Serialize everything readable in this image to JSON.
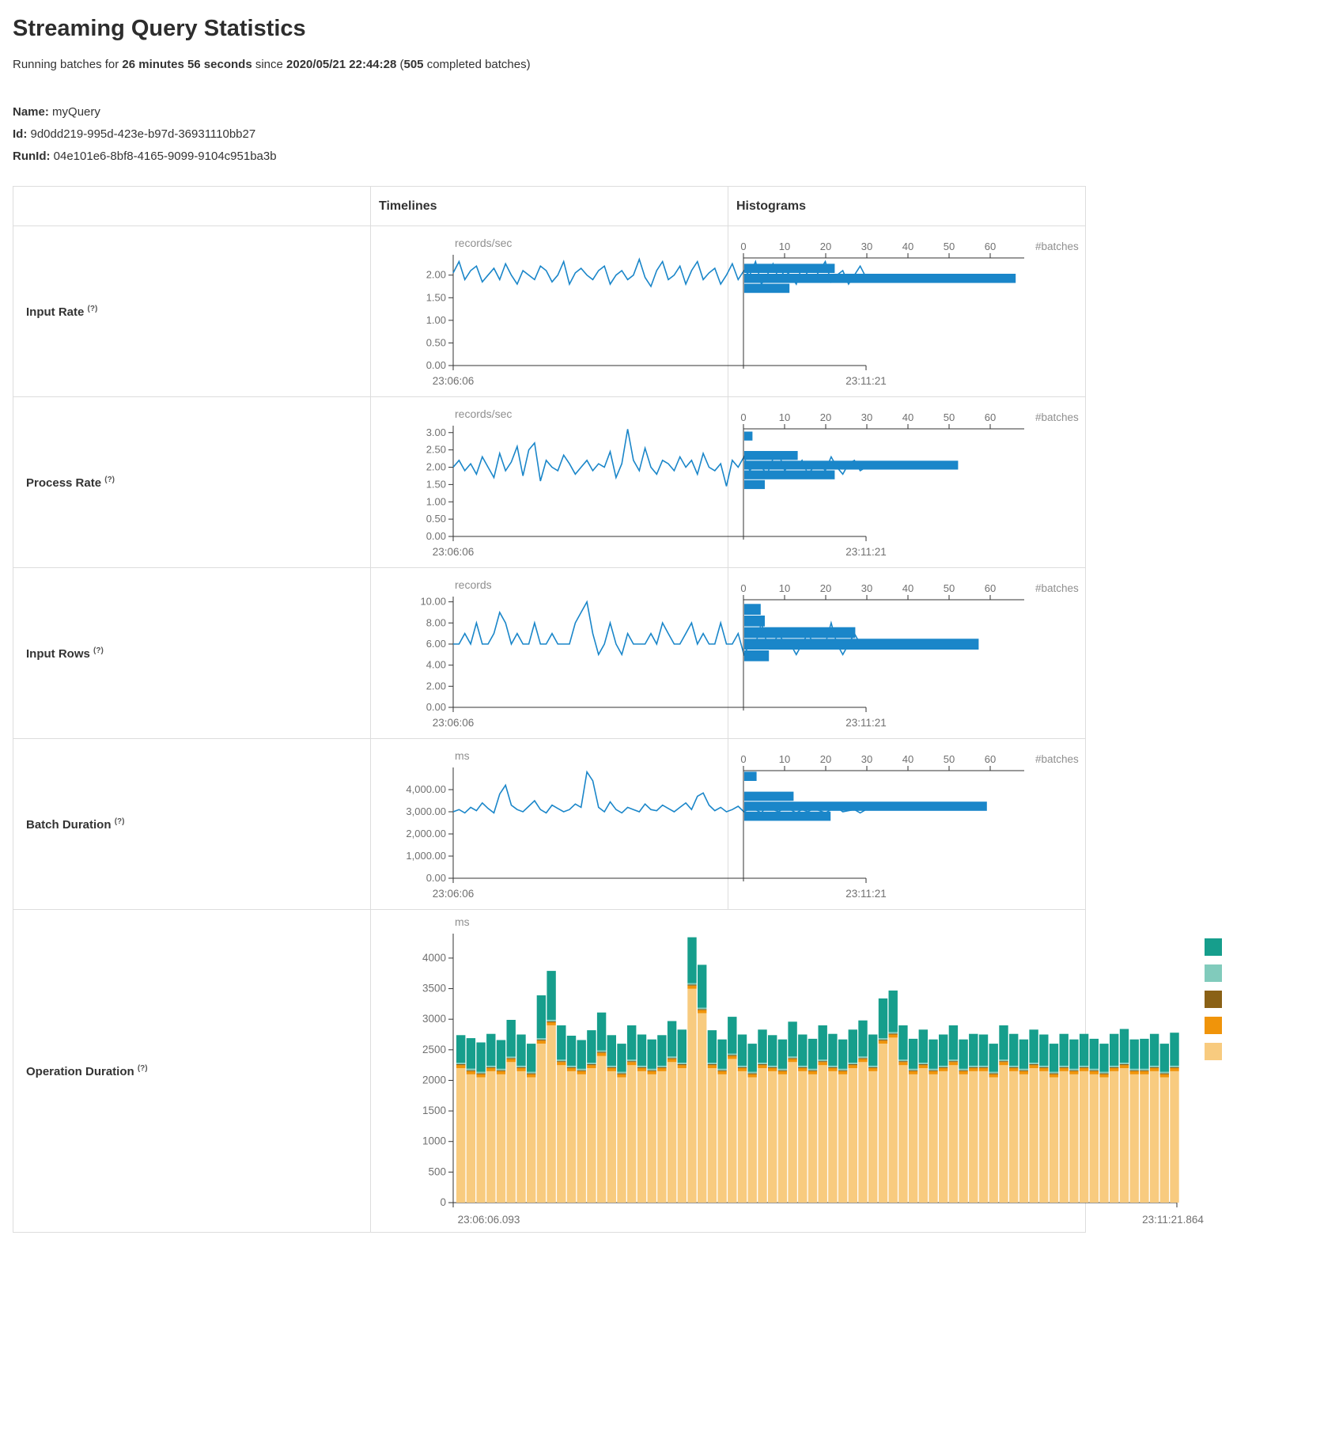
{
  "page": {
    "title": "Streaming Query Statistics",
    "subtitle": {
      "p1": "Running batches for ",
      "p2": "26 minutes 56 seconds",
      "p3": " since ",
      "p4": "2020/05/21 22:44:28",
      "p5": " (",
      "p6": "505",
      "p7": " completed batches)"
    },
    "meta": {
      "name_label": "Name:",
      "name": "myQuery",
      "id_label": "Id:",
      "id": "9d0dd219-995d-423e-b97d-36931110bb27",
      "runid_label": "RunId:",
      "runid": "04e101e6-8bf8-4165-9099-9104c951ba3b"
    }
  },
  "table": {
    "header": {
      "timelines": "Timelines",
      "histograms": "Histograms"
    },
    "help_marker": "(?)",
    "rows": [
      {
        "label": "Input Rate"
      },
      {
        "label": "Process Rate"
      },
      {
        "label": "Input Rows"
      },
      {
        "label": "Batch Duration"
      },
      {
        "label": "Operation Duration"
      }
    ]
  },
  "colors": {
    "line_blue": "#1a86c9",
    "hist_blue": "#1a86c9",
    "axis": "#333333",
    "tick_text": "#707070",
    "unit_text": "#8f8f8f"
  },
  "chart_data": [
    {
      "name": "input-rate-timeline",
      "type": "line",
      "unit": "records/sec",
      "color": "#1a86c9",
      "x_start": "23:06:06",
      "x_end": "23:11:21",
      "ylim": [
        0,
        2.45
      ],
      "ymax": 2.45,
      "yticks": [
        0,
        0.5,
        1,
        1.5,
        2
      ],
      "ytick_labels": [
        "0.00",
        "0.50",
        "1.00",
        "1.50",
        "2.00"
      ],
      "values": [
        2.05,
        2.3,
        1.9,
        2.1,
        2.2,
        1.85,
        2.0,
        2.15,
        1.9,
        2.25,
        2.0,
        1.8,
        2.1,
        2.0,
        1.9,
        2.2,
        2.1,
        1.85,
        2.0,
        2.3,
        1.8,
        2.05,
        2.15,
        2.0,
        1.9,
        2.1,
        2.2,
        1.8,
        2.0,
        2.1,
        1.9,
        2.0,
        2.35,
        1.95,
        1.75,
        2.1,
        2.3,
        1.9,
        2.0,
        2.2,
        1.8,
        2.1,
        2.3,
        1.9,
        2.05,
        2.15,
        1.8,
        2.0,
        2.25,
        1.9,
        2.1,
        2.0,
        2.3,
        1.8,
        2.0,
        2.25,
        1.9,
        2.1,
        2.0,
        1.8,
        2.2,
        2.0,
        1.9,
        2.1,
        2.3,
        1.85,
        2.0,
        2.1,
        1.8,
        2.0,
        2.2,
        1.95
      ]
    },
    {
      "name": "input-rate-histogram",
      "type": "histogram",
      "xlabel": "#batches",
      "color": "#1a86c9",
      "ymax": 2.45,
      "xticks": [
        0,
        10,
        20,
        30,
        40,
        50,
        60
      ],
      "bins": [
        {
          "from": 2.1,
          "to": 2.32,
          "count": 22
        },
        {
          "from": 1.88,
          "to": 2.1,
          "count": 66
        },
        {
          "from": 1.66,
          "to": 1.88,
          "count": 11
        }
      ]
    },
    {
      "name": "process-rate-timeline",
      "type": "line",
      "unit": "records/sec",
      "color": "#1a86c9",
      "x_start": "23:06:06",
      "x_end": "23:11:21",
      "ylim": [
        0,
        3.2
      ],
      "ymax": 3.2,
      "yticks": [
        0,
        0.5,
        1,
        1.5,
        2,
        2.5,
        3
      ],
      "ytick_labels": [
        "0.00",
        "0.50",
        "1.00",
        "1.50",
        "2.00",
        "2.50",
        "3.00"
      ],
      "values": [
        2.0,
        2.2,
        1.9,
        2.1,
        1.8,
        2.3,
        2.0,
        1.7,
        2.4,
        1.9,
        2.15,
        2.6,
        1.75,
        2.5,
        2.7,
        1.6,
        2.2,
        2.0,
        1.9,
        2.35,
        2.1,
        1.8,
        2.0,
        2.2,
        1.9,
        2.1,
        2.0,
        2.45,
        1.7,
        2.1,
        3.1,
        2.2,
        1.9,
        2.55,
        2.0,
        1.8,
        2.2,
        2.1,
        1.9,
        2.3,
        2.0,
        2.2,
        1.8,
        2.4,
        2.0,
        1.9,
        2.1,
        1.45,
        2.2,
        2.0,
        2.3,
        1.9,
        2.1,
        2.0,
        1.8,
        2.25,
        2.4,
        1.9,
        2.1,
        2.0,
        2.2,
        1.8,
        2.0,
        2.1,
        1.9,
        2.3,
        2.0,
        1.8,
        2.1,
        2.2,
        1.9,
        2.0
      ]
    },
    {
      "name": "process-rate-histogram",
      "type": "histogram",
      "xlabel": "#batches",
      "color": "#1a86c9",
      "ymax": 3.2,
      "xticks": [
        0,
        10,
        20,
        30,
        40,
        50,
        60
      ],
      "bins": [
        {
          "from": 2.84,
          "to": 3.12,
          "count": 2
        },
        {
          "from": 2.28,
          "to": 2.56,
          "count": 13
        },
        {
          "from": 2.0,
          "to": 2.28,
          "count": 52
        },
        {
          "from": 1.72,
          "to": 2.0,
          "count": 22
        },
        {
          "from": 1.44,
          "to": 1.72,
          "count": 5
        }
      ]
    },
    {
      "name": "input-rows-timeline",
      "type": "line",
      "unit": "records",
      "color": "#1a86c9",
      "x_start": "23:06:06",
      "x_end": "23:11:21",
      "ylim": [
        0,
        10.5
      ],
      "ymax": 10.5,
      "yticks": [
        0,
        2,
        4,
        6,
        8,
        10
      ],
      "ytick_labels": [
        "0.00",
        "2.00",
        "4.00",
        "6.00",
        "8.00",
        "10.00"
      ],
      "values": [
        6,
        6,
        7,
        6,
        8,
        6,
        6,
        7,
        9,
        8,
        6,
        7,
        6,
        6,
        8,
        6,
        6,
        7,
        6,
        6,
        6,
        8,
        9,
        10,
        7,
        5,
        6,
        8,
        6,
        5,
        7,
        6,
        6,
        6,
        7,
        6,
        8,
        7,
        6,
        6,
        7,
        8,
        6,
        7,
        6,
        6,
        8,
        6,
        6,
        7,
        5,
        6,
        6,
        8,
        6,
        6,
        7,
        6,
        6,
        5,
        6,
        7,
        6,
        6,
        6,
        8,
        6,
        5,
        6,
        7,
        6,
        6
      ]
    },
    {
      "name": "input-rows-histogram",
      "type": "histogram",
      "xlabel": "#batches",
      "color": "#1a86c9",
      "ymax": 10.5,
      "xticks": [
        0,
        10,
        20,
        30,
        40,
        50,
        60
      ],
      "bins": [
        {
          "from": 9.0,
          "to": 10.1,
          "count": 4
        },
        {
          "from": 7.9,
          "to": 9.0,
          "count": 5
        },
        {
          "from": 6.8,
          "to": 7.9,
          "count": 27
        },
        {
          "from": 5.7,
          "to": 6.8,
          "count": 57
        },
        {
          "from": 4.6,
          "to": 5.7,
          "count": 6
        }
      ]
    },
    {
      "name": "batch-duration-timeline",
      "type": "line",
      "unit": "ms",
      "color": "#1a86c9",
      "x_start": "23:06:06",
      "x_end": "23:11:21",
      "ylim": [
        0,
        5000
      ],
      "ymax": 5000,
      "yticks": [
        0,
        1000,
        2000,
        3000,
        4000
      ],
      "ytick_labels": [
        "0.00",
        "1,000.00",
        "2,000.00",
        "3,000.00",
        "4,000.00"
      ],
      "values": [
        3000,
        3100,
        2950,
        3200,
        3050,
        3400,
        3150,
        2950,
        3800,
        4200,
        3300,
        3100,
        3000,
        3250,
        3500,
        3100,
        2950,
        3300,
        3150,
        3000,
        3100,
        3350,
        3200,
        4800,
        4400,
        3200,
        3000,
        3450,
        3100,
        2950,
        3200,
        3100,
        3000,
        3350,
        3100,
        3050,
        3300,
        3150,
        3000,
        3200,
        3400,
        3100,
        3700,
        3850,
        3300,
        3050,
        3200,
        3000,
        3100,
        3250,
        3000,
        3150,
        3100,
        2950,
        3300,
        3100,
        3000,
        3200,
        3100,
        2950,
        3100,
        3000,
        3150,
        3050,
        2950,
        3100,
        3200,
        3000,
        3050,
        3100,
        2950,
        3100
      ]
    },
    {
      "name": "batch-duration-histogram",
      "type": "histogram",
      "xlabel": "#batches",
      "color": "#1a86c9",
      "ymax": 5000,
      "xticks": [
        0,
        10,
        20,
        30,
        40,
        50,
        60
      ],
      "bins": [
        {
          "from": 4500,
          "to": 4950,
          "count": 3
        },
        {
          "from": 3600,
          "to": 4050,
          "count": 12
        },
        {
          "from": 3150,
          "to": 3600,
          "count": 59
        },
        {
          "from": 2700,
          "to": 3150,
          "count": 21
        }
      ]
    },
    {
      "name": "operation-duration-stacked",
      "type": "stacked-bar",
      "unit": "ms",
      "x_start": "23:06:06.093",
      "x_end": "23:11:21.864",
      "ylim": [
        0,
        4400
      ],
      "ymax": 4400,
      "yticks": [
        0,
        500,
        1000,
        1500,
        2000,
        2500,
        3000,
        3500,
        4000
      ],
      "ytick_labels": [
        "0",
        "500",
        "1000",
        "1500",
        "2000",
        "2500",
        "3000",
        "3500",
        "4000"
      ],
      "legend_colors": [
        "#169e8c",
        "#81cbbc",
        "#8a6116",
        "#f0940a",
        "#f8cb7f"
      ],
      "series": [
        {
          "color": "#f8cb7f",
          "values": [
            2200,
            2100,
            2050,
            2150,
            2100,
            2300,
            2150,
            2050,
            2600,
            2900,
            2250,
            2150,
            2100,
            2200,
            2400,
            2150,
            2050,
            2250,
            2150,
            2100,
            2150,
            2300,
            2200,
            3500,
            3100,
            2200,
            2100,
            2350,
            2150,
            2050,
            2200,
            2150,
            2100,
            2300,
            2150,
            2100,
            2250,
            2150,
            2100,
            2200,
            2300,
            2150,
            2600,
            2700,
            2250,
            2100,
            2200,
            2100,
            2150,
            2250,
            2100,
            2150,
            2150,
            2050,
            2250,
            2150,
            2100,
            2200,
            2150,
            2050,
            2150,
            2100,
            2150,
            2100,
            2050,
            2150,
            2200,
            2100,
            2100,
            2150,
            2050,
            2150
          ]
        },
        {
          "color": "#f0940a",
          "constant": 50
        },
        {
          "color": "#8a6116",
          "constant": 15
        },
        {
          "color": "#81cbbc",
          "constant": 25
        },
        {
          "color": "#169e8c",
          "values": [
            450,
            500,
            480,
            520,
            470,
            600,
            510,
            460,
            700,
            800,
            560,
            490,
            470,
            530,
            620,
            500,
            460,
            560,
            510,
            480,
            500,
            580,
            540,
            750,
            700,
            530,
            480,
            600,
            510,
            460,
            540,
            500,
            480,
            570,
            510,
            490,
            560,
            520,
            480,
            540,
            590,
            510,
            650,
            680,
            560,
            490,
            540,
            480,
            510,
            560,
            480,
            520,
            510,
            460,
            560,
            520,
            480,
            540,
            510,
            460,
            520,
            480,
            520,
            490,
            460,
            520,
            550,
            480,
            490,
            520,
            460,
            540
          ]
        }
      ]
    }
  ]
}
